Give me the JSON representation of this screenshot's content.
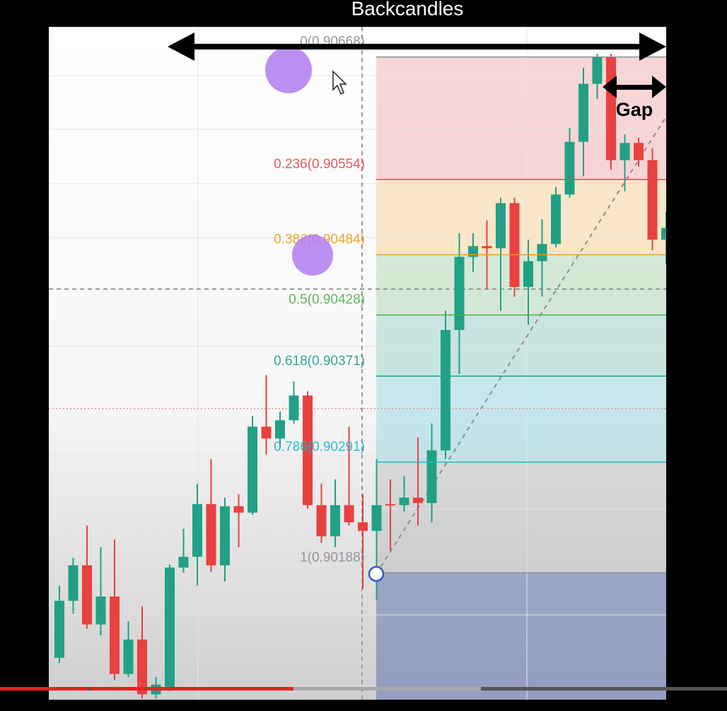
{
  "chart_data": {
    "type": "candlestick",
    "annotations": [
      "Backcandles",
      "Gap"
    ],
    "up_color": "#22a085",
    "down_color": "#e8413f",
    "ylim": [
      0.9007,
      0.90696
    ],
    "series": [
      {
        "open": [
          0.90109,
          0.90162,
          0.90195,
          0.9014,
          0.90166,
          0.90094,
          0.90126,
          0.90075,
          0.90081,
          0.90193,
          0.90203,
          0.90252,
          0.90195,
          0.9025,
          0.90244,
          0.90324,
          0.90313,
          0.9033,
          0.90353,
          0.90251,
          0.90222,
          0.90251,
          0.90235,
          0.90227,
          0.90252,
          0.90251,
          0.90258,
          0.90253,
          0.90302,
          0.90414,
          0.90482,
          0.90492,
          0.9049,
          0.90532,
          0.90454,
          0.90478,
          0.90494,
          0.9054,
          0.90589,
          0.90643,
          0.90668,
          0.90572,
          0.90588,
          0.90572,
          0.90498
        ],
        "high": [
          0.90176,
          0.90202,
          0.90232,
          0.90212,
          0.90219,
          0.90143,
          0.90157,
          0.90091,
          0.90196,
          0.90229,
          0.90271,
          0.90294,
          0.90258,
          0.90261,
          0.90334,
          0.90372,
          0.90338,
          0.90366,
          0.90357,
          0.90271,
          0.90275,
          0.90324,
          0.90261,
          0.90294,
          0.90275,
          0.90278,
          0.90314,
          0.90327,
          0.90432,
          0.90504,
          0.90504,
          0.90516,
          0.90537,
          0.90537,
          0.90498,
          0.90517,
          0.90547,
          0.90602,
          0.90658,
          0.90671,
          0.90671,
          0.90596,
          0.90593,
          0.90583,
          0.90524
        ],
        "low": [
          0.90104,
          0.9015,
          0.90136,
          0.9013,
          0.90088,
          0.90091,
          0.90071,
          0.90071,
          0.90078,
          0.90188,
          0.90176,
          0.90189,
          0.9018,
          0.90212,
          0.90242,
          0.90298,
          0.90304,
          0.90327,
          0.90248,
          0.90216,
          0.90212,
          0.90232,
          0.90173,
          0.90163,
          0.90209,
          0.90245,
          0.90232,
          0.90235,
          0.90294,
          0.90373,
          0.90468,
          0.90452,
          0.90432,
          0.90445,
          0.90419,
          0.90445,
          0.90491,
          0.90537,
          0.90557,
          0.90629,
          0.90563,
          0.90543,
          0.90566,
          0.90488,
          0.90475
        ],
        "close": [
          0.90162,
          0.90195,
          0.9014,
          0.90166,
          0.90094,
          0.90126,
          0.90075,
          0.90084,
          0.90193,
          0.90203,
          0.90252,
          0.90195,
          0.9025,
          0.90244,
          0.90324,
          0.90313,
          0.9033,
          0.90353,
          0.90251,
          0.90222,
          0.90251,
          0.90235,
          0.90227,
          0.90251,
          0.90251,
          0.90258,
          0.90253,
          0.90302,
          0.90414,
          0.90482,
          0.90492,
          0.9049,
          0.90532,
          0.90454,
          0.90478,
          0.90494,
          0.9054,
          0.90589,
          0.90643,
          0.90668,
          0.90572,
          0.90588,
          0.90572,
          0.90498,
          0.90509
        ]
      }
    ],
    "fib_levels": [
      {
        "label": "0(0.90668)",
        "value": 0.90668,
        "color": "#8a8d96"
      },
      {
        "label": "0.236(0.90554)",
        "value": 0.90554,
        "color": "#e5484d"
      },
      {
        "label": "0.382(0.90484)",
        "value": 0.90484,
        "color": "#f59a16"
      },
      {
        "label": "0.5(0.90428)",
        "value": 0.90428,
        "color": "#4caf50"
      },
      {
        "label": "0.618(0.90371)",
        "value": 0.90371,
        "color": "#1f9e8a"
      },
      {
        "label": "0.786(0.90291)",
        "value": 0.90291,
        "color": "#1bb6cc"
      },
      {
        "label": "1(0.90188)",
        "value": 0.90188,
        "color": "#8a8d96"
      }
    ]
  }
}
